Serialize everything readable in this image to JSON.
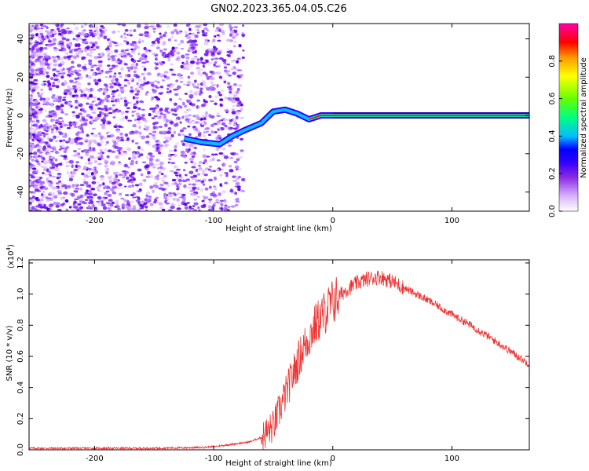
{
  "title": "GN02.2023.365.04.05.C26",
  "chart_data": [
    {
      "type": "heatmap",
      "xlabel": "Height of straight line (km)",
      "ylabel": "Frequency (Hz)",
      "xlim": [
        -255,
        165
      ],
      "ylim": [
        -50,
        48
      ],
      "x_ticks": [
        -200,
        -100,
        0,
        100
      ],
      "y_ticks": [
        -40,
        -20,
        0,
        20,
        40
      ],
      "colorbar": {
        "label": "Normalized spectral amplitude",
        "range": [
          0.0,
          1.0
        ],
        "ticks": [
          0.0,
          0.2,
          0.4,
          0.6,
          0.8
        ],
        "colors": [
          "#ffffff",
          "#d9b3ff",
          "#8a2be2",
          "#3300ff",
          "#0000ff",
          "#00bfff",
          "#00ff7f",
          "#66ff00",
          "#ffff00",
          "#ff9900",
          "#ff0000",
          "#ff00aa"
        ]
      },
      "ridge": [
        {
          "x": -125,
          "y": -12
        },
        {
          "x": -110,
          "y": -14
        },
        {
          "x": -95,
          "y": -15
        },
        {
          "x": -85,
          "y": -11
        },
        {
          "x": -75,
          "y": -8
        },
        {
          "x": -60,
          "y": -4
        },
        {
          "x": -50,
          "y": 2
        },
        {
          "x": -40,
          "y": 3
        },
        {
          "x": -30,
          "y": 1
        },
        {
          "x": -20,
          "y": -2
        },
        {
          "x": -10,
          "y": 0
        },
        {
          "x": 0,
          "y": 0
        },
        {
          "x": 100,
          "y": 0
        },
        {
          "x": 165,
          "y": 0
        }
      ]
    },
    {
      "type": "line",
      "xlabel": "Height of straight line (km)",
      "ylabel": "SNR (10 * v/v)",
      "y_scale_label": "(x10",
      "y_scale_exp": "4",
      "y_scale_close": ")",
      "xlim": [
        -255,
        165
      ],
      "ylim": [
        0.0,
        1.22
      ],
      "x_ticks": [
        -200,
        -100,
        0,
        100
      ],
      "y_ticks": [
        0.0,
        0.2,
        0.4,
        0.6,
        0.8,
        1.0,
        1.2
      ],
      "y_tick_labels": [
        "0.0",
        "0.2",
        "0.4",
        "0.6",
        "0.8",
        "1.0",
        "1.2"
      ],
      "series": [
        {
          "color": "#ee3333",
          "x": [
            -255,
            -200,
            -150,
            -110,
            -100,
            -90,
            -80,
            -70,
            -60,
            -50,
            -45,
            -40,
            -35,
            -30,
            -25,
            -20,
            -15,
            -10,
            -5,
            0,
            10,
            20,
            30,
            40,
            50,
            60,
            80,
            100,
            120,
            140,
            165
          ],
          "y": [
            0.01,
            0.01,
            0.01,
            0.015,
            0.02,
            0.03,
            0.04,
            0.05,
            0.08,
            0.15,
            0.25,
            0.35,
            0.45,
            0.55,
            0.65,
            0.72,
            0.8,
            0.85,
            0.9,
            0.95,
            1.02,
            1.07,
            1.1,
            1.11,
            1.08,
            1.04,
            0.96,
            0.87,
            0.78,
            0.68,
            0.55
          ]
        }
      ]
    }
  ]
}
